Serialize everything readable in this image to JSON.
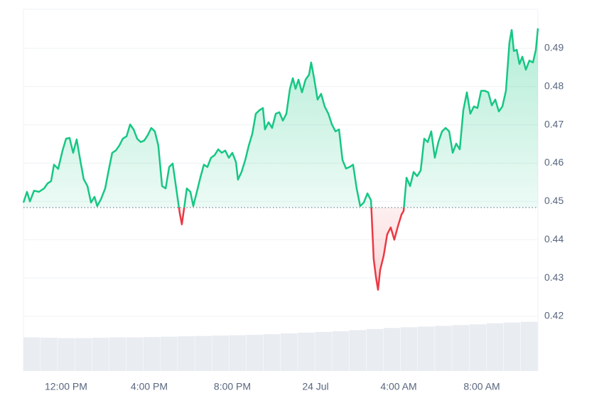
{
  "chart_data": {
    "type": "line",
    "x": [
      9.95,
      10.12,
      10.26,
      10.46,
      10.7,
      10.94,
      11.11,
      11.28,
      11.42,
      11.62,
      11.83,
      12.0,
      12.17,
      12.34,
      12.51,
      12.68,
      12.85,
      13.03,
      13.2,
      13.37,
      13.5,
      13.68,
      13.88,
      14.05,
      14.22,
      14.39,
      14.56,
      14.73,
      14.91,
      15.08,
      15.25,
      15.42,
      15.59,
      15.76,
      15.93,
      16.1,
      16.27,
      16.44,
      16.62,
      16.79,
      16.96,
      17.13,
      17.3,
      17.47,
      17.57,
      17.68,
      17.81,
      17.98,
      18.12,
      18.29,
      18.46,
      18.63,
      18.8,
      18.97,
      19.15,
      19.32,
      19.49,
      19.66,
      19.83,
      20.0,
      20.17,
      20.27,
      20.44,
      20.62,
      20.79,
      20.96,
      21.13,
      21.3,
      21.47,
      21.57,
      21.74,
      21.91,
      22.09,
      22.26,
      22.43,
      22.6,
      22.77,
      22.91,
      23.04,
      23.18,
      23.35,
      23.52,
      23.69,
      23.79,
      23.93,
      24.1,
      24.27,
      24.44,
      24.62,
      24.79,
      24.96,
      25.13,
      25.3,
      25.47,
      25.64,
      25.81,
      25.98,
      26.15,
      26.32,
      26.5,
      26.67,
      26.8,
      26.91,
      27.01,
      27.11,
      27.28,
      27.45,
      27.62,
      27.79,
      27.97,
      28.14,
      28.24,
      28.38,
      28.55,
      28.72,
      28.89,
      29.06,
      29.23,
      29.4,
      29.57,
      29.74,
      29.91,
      30.09,
      30.26,
      30.43,
      30.6,
      30.77,
      30.94,
      31.11,
      31.28,
      31.45,
      31.62,
      31.79,
      31.97,
      32.14,
      32.31,
      32.48,
      32.65,
      32.82,
      32.99,
      33.16,
      33.33,
      33.44,
      33.54,
      33.68,
      33.81,
      33.95,
      34.12,
      34.29,
      34.46,
      34.6,
      34.7
    ],
    "values": [
      0.4497,
      0.4525,
      0.45,
      0.4528,
      0.4525,
      0.4534,
      0.4547,
      0.4553,
      0.4596,
      0.4585,
      0.4633,
      0.4664,
      0.4666,
      0.4627,
      0.4662,
      0.4608,
      0.4558,
      0.454,
      0.4497,
      0.4512,
      0.4488,
      0.4506,
      0.4534,
      0.4581,
      0.4627,
      0.4633,
      0.4646,
      0.4664,
      0.467,
      0.4701,
      0.4688,
      0.4664,
      0.4655,
      0.4659,
      0.4673,
      0.4692,
      0.4683,
      0.4646,
      0.454,
      0.4534,
      0.459,
      0.4599,
      0.4534,
      0.4469,
      0.444,
      0.4482,
      0.4534,
      0.4525,
      0.4488,
      0.4525,
      0.4562,
      0.4596,
      0.459,
      0.4614,
      0.4621,
      0.4636,
      0.4627,
      0.4633,
      0.4614,
      0.4627,
      0.4603,
      0.4557,
      0.4577,
      0.4608,
      0.4646,
      0.4677,
      0.4729,
      0.4738,
      0.4744,
      0.4688,
      0.4707,
      0.4692,
      0.4729,
      0.4733,
      0.4711,
      0.4729,
      0.4794,
      0.4822,
      0.4794,
      0.4818,
      0.4785,
      0.4818,
      0.4831,
      0.4863,
      0.4822,
      0.4766,
      0.4781,
      0.4748,
      0.4729,
      0.4701,
      0.4683,
      0.4688,
      0.4608,
      0.4586,
      0.459,
      0.4596,
      0.4534,
      0.4488,
      0.4497,
      0.4521,
      0.4503,
      0.4349,
      0.4302,
      0.4269,
      0.4321,
      0.4358,
      0.4414,
      0.4432,
      0.44,
      0.4436,
      0.4466,
      0.4475,
      0.4562,
      0.454,
      0.4577,
      0.4566,
      0.4581,
      0.4664,
      0.4655,
      0.4683,
      0.4614,
      0.4655,
      0.4683,
      0.4692,
      0.4683,
      0.4627,
      0.4651,
      0.4636,
      0.4738,
      0.4785,
      0.4729,
      0.4748,
      0.4744,
      0.4789,
      0.4789,
      0.4785,
      0.4751,
      0.4766,
      0.4735,
      0.4748,
      0.4789,
      0.4915,
      0.4948,
      0.4893,
      0.4896,
      0.4859,
      0.4878,
      0.4844,
      0.4868,
      0.4863,
      0.4896,
      0.4952
    ],
    "baseline": 0.4484,
    "up_color": "#16c784",
    "down_color": "#ea3943",
    "xlim": [
      9.95,
      34.7
    ],
    "xticks": [
      {
        "value": 12,
        "label": "12:00 PM"
      },
      {
        "value": 16,
        "label": "4:00 PM"
      },
      {
        "value": 20,
        "label": "8:00 PM"
      },
      {
        "value": 24,
        "label": "24 Jul"
      },
      {
        "value": 28,
        "label": "4:00 AM"
      },
      {
        "value": 32,
        "label": "8:00 AM"
      }
    ],
    "ylim": [
      0.4057,
      0.5002
    ],
    "yticks": [
      0.42,
      0.43,
      0.44,
      0.45,
      0.46,
      0.47,
      0.48,
      0.49
    ],
    "grid": true,
    "volume": {
      "axis": "y2",
      "color": "#e9ecf1",
      "values": [
        9.3,
        9.2,
        9.1,
        9.1,
        9.2,
        9.3,
        9.3,
        9.4,
        9.5,
        9.6,
        9.7,
        9.8,
        9.9,
        10.0,
        10.2,
        10.4,
        10.6,
        10.8,
        11.0,
        11.3,
        11.6,
        11.9,
        12.1,
        12.3,
        12.5,
        12.7,
        12.9,
        13.2,
        13.4,
        13.6
      ]
    },
    "y2lim": [
      0,
      100
    ]
  }
}
